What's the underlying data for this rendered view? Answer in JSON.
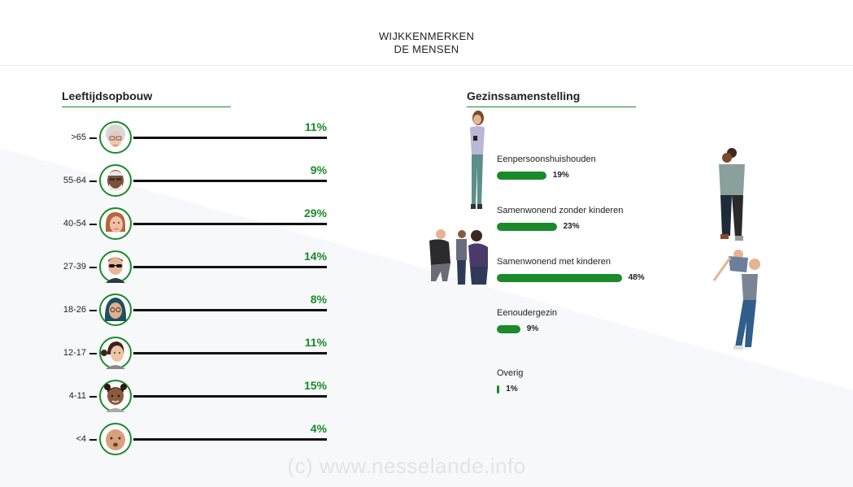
{
  "header": {
    "line1": "WIJKKENMERKEN",
    "line2": "DE MENSEN"
  },
  "left_section": {
    "title": "Leeftijdsopbouw"
  },
  "right_section": {
    "title": "Gezinssamenstelling"
  },
  "watermark": "(c)  www.nesselande.info",
  "colors": {
    "accent": "#1a8a2a",
    "line": "#111111",
    "background_diagonal": "#f7f8f9"
  },
  "chart_data": [
    {
      "type": "bar",
      "title": "Leeftijdsopbouw",
      "categories": [
        ">65",
        "55-64",
        "40-54",
        "27-39",
        "18-26",
        "12-17",
        "4-11",
        "<4"
      ],
      "values": [
        11,
        9,
        29,
        14,
        8,
        11,
        15,
        4
      ],
      "labels": [
        "11%",
        "9%",
        "29%",
        "14%",
        "8%",
        "11%",
        "15%",
        "4%"
      ],
      "icons": [
        "grandmother-avatar-icon",
        "older-man-avatar-icon",
        "woman-avatar-icon",
        "man-sunglasses-avatar-icon",
        "woman-headscarf-avatar-icon",
        "teen-girl-avatar-icon",
        "child-avatar-icon",
        "baby-avatar-icon"
      ]
    },
    {
      "type": "bar",
      "title": "Gezinssamenstelling",
      "categories": [
        "Eenpersoonshuishouden",
        "Samenwonend zonder kinderen",
        "Samenwonend met kinderen",
        "Eenoudergezin",
        "Overig"
      ],
      "values": [
        19,
        23,
        48,
        9,
        1
      ],
      "labels": [
        "19%",
        "23%",
        "48%",
        "9%",
        "1%"
      ]
    }
  ]
}
